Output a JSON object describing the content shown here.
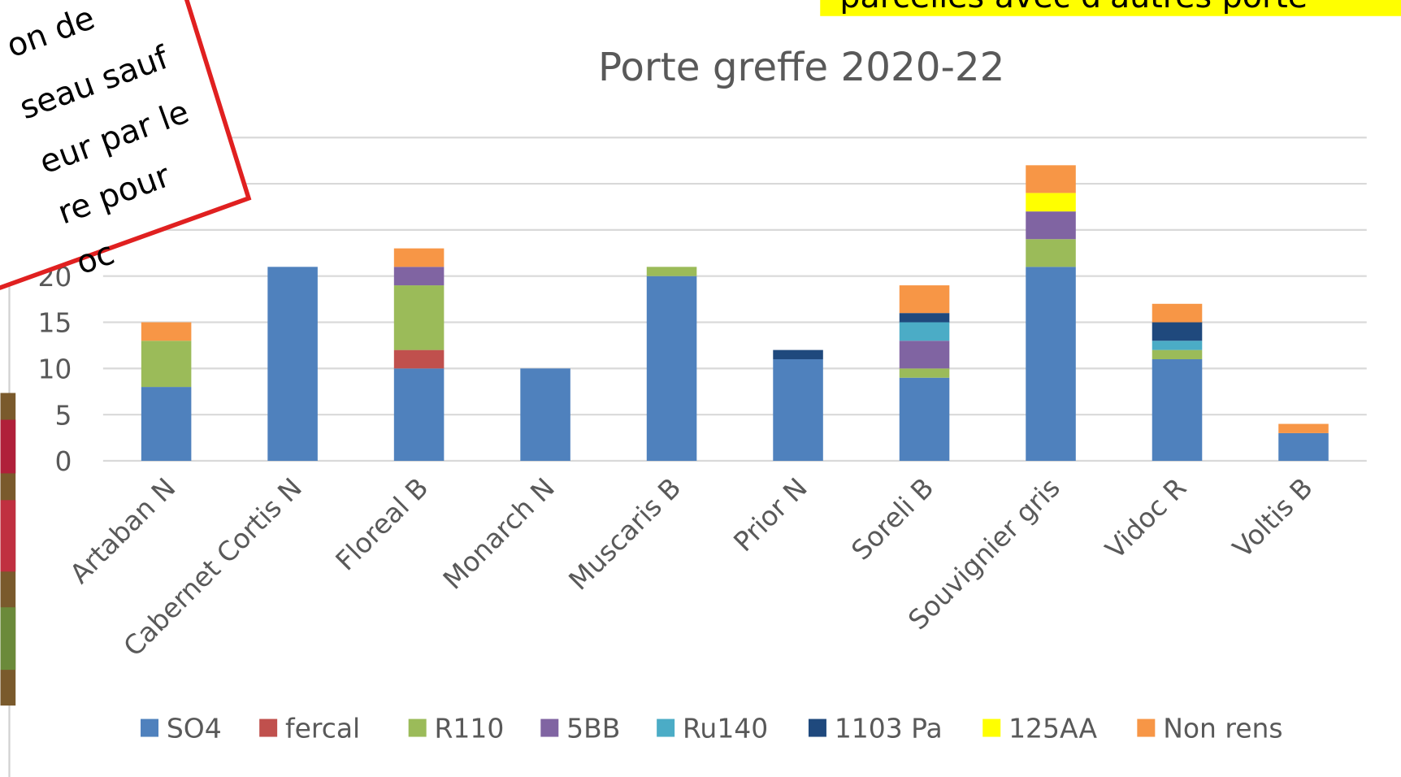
{
  "chart_data": {
    "type": "bar",
    "stacked": true,
    "title": "Porte greffe 2020-22",
    "categories": [
      "Artaban N",
      "Cabernet Cortis N",
      "Floreal B",
      "Monarch N",
      "Muscaris B",
      "Prior N",
      "Soreli B",
      "Souvignier gris",
      "Vidoc R",
      "Voltis B"
    ],
    "series": [
      {
        "name": "SO4",
        "color": "#4f81bd",
        "values": [
          8,
          21,
          10,
          10,
          20,
          11,
          9,
          21,
          11,
          3
        ]
      },
      {
        "name": "fercal",
        "color": "#c0504d",
        "values": [
          0,
          0,
          2,
          0,
          0,
          0,
          0,
          0,
          0,
          0
        ]
      },
      {
        "name": "R110",
        "color": "#9bbb59",
        "values": [
          5,
          0,
          7,
          0,
          1,
          0,
          1,
          3,
          1,
          0
        ]
      },
      {
        "name": "5BB",
        "color": "#8064a2",
        "values": [
          0,
          0,
          2,
          0,
          0,
          0,
          3,
          3,
          0,
          0
        ]
      },
      {
        "name": "Ru140",
        "color": "#4bacc6",
        "values": [
          0,
          0,
          0,
          0,
          0,
          0,
          2,
          0,
          1,
          0
        ]
      },
      {
        "name": "1103 Pa",
        "color": "#1f497d",
        "values": [
          0,
          0,
          0,
          0,
          0,
          1,
          1,
          0,
          2,
          0
        ]
      },
      {
        "name": "125AA",
        "color": "#ffff00",
        "values": [
          0,
          0,
          0,
          0,
          0,
          0,
          0,
          2,
          0,
          0
        ]
      },
      {
        "name": "Non rens",
        "color": "#f79646",
        "values": [
          2,
          0,
          2,
          0,
          0,
          0,
          3,
          3,
          2,
          1
        ]
      }
    ],
    "ylim": [
      0,
      35
    ],
    "yticks": [
      0,
      5,
      10,
      15,
      20,
      25,
      30,
      35
    ],
    "grid": true,
    "legend": "bottom"
  },
  "callout": {
    "lines": [
      "on de",
      "seau sauf",
      "eur par le",
      "re pour",
      "oc"
    ]
  },
  "banner": {
    "text": "parcelles avec d'autres porte"
  }
}
